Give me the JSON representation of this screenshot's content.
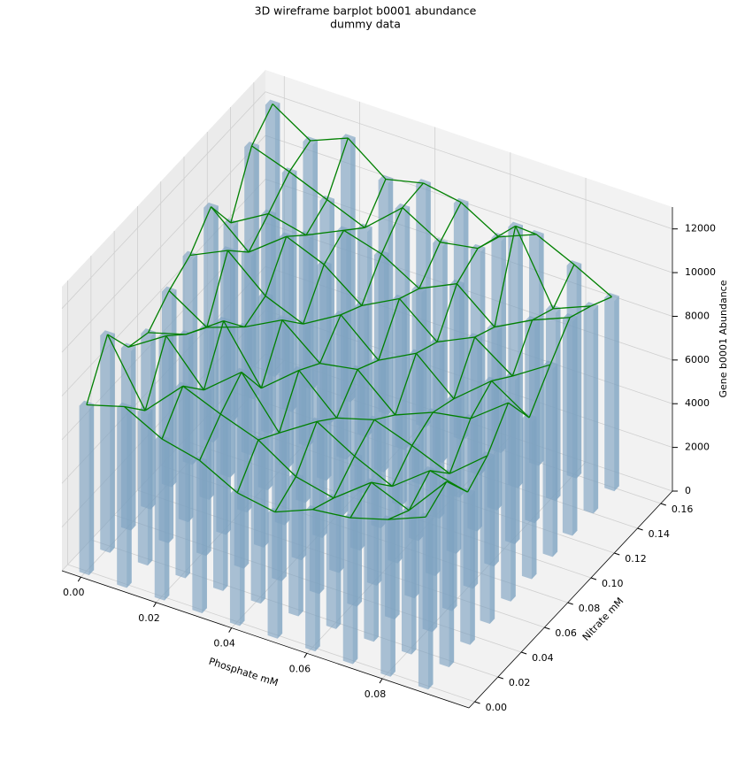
{
  "chart_data": {
    "type": "bar3d",
    "title": "3D wireframe barplot b0001 abundance",
    "subtitle": "dummy data",
    "xlabel": "Phosphate mM",
    "ylabel": "Nitrate mM",
    "zlabel": "Gene b0001 Abundance",
    "x": [
      0,
      0.01,
      0.02,
      0.03,
      0.04,
      0.05,
      0.06,
      0.07,
      0.08,
      0.09
    ],
    "y": [
      0,
      0.018,
      0.036,
      0.053,
      0.071,
      0.089,
      0.107,
      0.124,
      0.142,
      0.16
    ],
    "z": [
      [
        7600,
        9800,
        8200,
        7900,
        8800,
        9400,
        10600,
        8900,
        11400,
        12300
      ],
      [
        8100,
        6900,
        9300,
        8400,
        7700,
        10200,
        9100,
        9900,
        10800,
        11200
      ],
      [
        7200,
        8600,
        7400,
        9600,
        8300,
        8700,
        10400,
        9500,
        10100,
        11900
      ],
      [
        6800,
        7900,
        8800,
        7100,
        9200,
        8000,
        9700,
        10300,
        9400,
        10600
      ],
      [
        5900,
        7300,
        6600,
        8500,
        7800,
        9000,
        8400,
        9800,
        10900,
        11000
      ],
      [
        5600,
        6200,
        7700,
        6900,
        8100,
        7500,
        9300,
        8800,
        9900,
        10700
      ],
      [
        6300,
        5800,
        6700,
        7400,
        6600,
        8400,
        7900,
        9600,
        10200,
        9700
      ],
      [
        6500,
        7100,
        5900,
        6800,
        7300,
        6900,
        8700,
        8200,
        11800,
        10400
      ],
      [
        7000,
        6400,
        7200,
        6100,
        7600,
        8300,
        7500,
        9100,
        8600,
        9600
      ],
      [
        7700,
        8300,
        6800,
        7500,
        8900,
        7200,
        8600,
        9800,
        9300,
        8700
      ]
    ],
    "bar_color": "#7fa3c2",
    "wire_color": "#008000",
    "xlim": [
      -0.005,
      0.103
    ],
    "ylim": [
      -0.005,
      0.17
    ],
    "zlim": [
      0,
      13000
    ],
    "xticks": [
      {
        "value": 0,
        "label": "0.00"
      },
      {
        "value": 0.02,
        "label": "0.02"
      },
      {
        "value": 0.04,
        "label": "0.04"
      },
      {
        "value": 0.06,
        "label": "0.06"
      },
      {
        "value": 0.08,
        "label": "0.08"
      }
    ],
    "yticks": [
      {
        "value": 0,
        "label": "0.00"
      },
      {
        "value": 0.02,
        "label": "0.02"
      },
      {
        "value": 0.04,
        "label": "0.04"
      },
      {
        "value": 0.06,
        "label": "0.06"
      },
      {
        "value": 0.08,
        "label": "0.08"
      },
      {
        "value": 0.1,
        "label": "0.10"
      },
      {
        "value": 0.12,
        "label": "0.12"
      },
      {
        "value": 0.14,
        "label": "0.14"
      },
      {
        "value": 0.16,
        "label": "0.16"
      }
    ],
    "zticks": [
      0,
      2000,
      4000,
      6000,
      8000,
      10000,
      12000
    ],
    "grid": true
  }
}
